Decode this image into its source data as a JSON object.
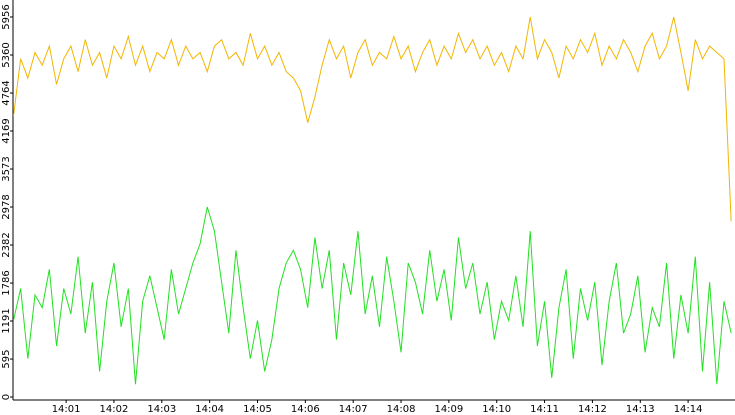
{
  "chart_data": {
    "type": "line",
    "x": [
      -0.1,
      0.05,
      0.2,
      0.35,
      0.5,
      0.65,
      0.8,
      0.95,
      1.1,
      1.25,
      1.4,
      1.55,
      1.7,
      1.85,
      2,
      2.15,
      2.3,
      2.45,
      2.6,
      2.75,
      2.9,
      3.05,
      3.2,
      3.35,
      3.5,
      3.65,
      3.8,
      3.95,
      4.1,
      4.25,
      4.4,
      4.55,
      4.7,
      4.85,
      5,
      5.15,
      5.3,
      5.45,
      5.6,
      5.75,
      5.9,
      6.05,
      6.2,
      6.35,
      6.5,
      6.65,
      6.8,
      6.95,
      7.1,
      7.25,
      7.4,
      7.55,
      7.7,
      7.85,
      8,
      8.15,
      8.3,
      8.45,
      8.6,
      8.75,
      8.9,
      9.05,
      9.2,
      9.35,
      9.5,
      9.65,
      9.8,
      9.95,
      10.1,
      10.25,
      10.4,
      10.55,
      10.7,
      10.85,
      11,
      11.15,
      11.3,
      11.45,
      11.6,
      11.75,
      11.9,
      12.05,
      12.2,
      12.35,
      12.5,
      12.65,
      12.8,
      12.95,
      13.1,
      13.25,
      13.4,
      13.55,
      13.7,
      13.85,
      14,
      14.15,
      14.3,
      14.45,
      14.6,
      14.75,
      14.9
    ],
    "series": [
      {
        "color": "#f2b600",
        "values": [
          4400,
          5300,
          5000,
          5400,
          5200,
          5500,
          4900,
          5300,
          5500,
          5100,
          5600,
          5200,
          5400,
          5000,
          5500,
          5300,
          5650,
          5200,
          5500,
          5100,
          5400,
          5300,
          5600,
          5200,
          5500,
          5300,
          5400,
          5100,
          5500,
          5600,
          5300,
          5400,
          5200,
          5700,
          5300,
          5500,
          5200,
          5400,
          5100,
          5000,
          4800,
          4300,
          4700,
          5200,
          5600,
          5300,
          5500,
          5000,
          5400,
          5600,
          5200,
          5400,
          5300,
          5650,
          5300,
          5500,
          5100,
          5400,
          5600,
          5200,
          5500,
          5300,
          5700,
          5400,
          5600,
          5300,
          5500,
          5200,
          5400,
          5100,
          5500,
          5300,
          5956,
          5300,
          5600,
          5400,
          5000,
          5500,
          5300,
          5600,
          5400,
          5700,
          5200,
          5500,
          5300,
          5600,
          5400,
          5100,
          5500,
          5700,
          5300,
          5500,
          5956,
          5400,
          4800,
          5600,
          5300,
          5500,
          5400,
          5300,
          2750
        ]
      },
      {
        "color": "#22e022",
        "values": [
          1200,
          1700,
          600,
          1600,
          1400,
          2000,
          800,
          1700,
          1300,
          2200,
          1000,
          1800,
          400,
          1500,
          2100,
          1100,
          1700,
          200,
          1500,
          1900,
          1400,
          900,
          2000,
          1300,
          1700,
          2100,
          2400,
          2978,
          2600,
          1800,
          1000,
          2300,
          1400,
          600,
          1200,
          400,
          900,
          1700,
          2100,
          2300,
          2000,
          1400,
          2500,
          1700,
          2300,
          900,
          2100,
          1600,
          2600,
          1300,
          1900,
          1100,
          2200,
          1500,
          700,
          2100,
          1800,
          1300,
          2300,
          1500,
          2000,
          1200,
          2500,
          1700,
          2100,
          1300,
          1800,
          900,
          1500,
          1200,
          1900,
          1100,
          2600,
          800,
          1500,
          300,
          1400,
          2000,
          600,
          1700,
          1200,
          1800,
          500,
          1500,
          2100,
          1000,
          1300,
          1900,
          700,
          1400,
          1100,
          2100,
          600,
          1600,
          1000,
          2200,
          400,
          1800,
          200,
          1500,
          1000
        ]
      }
    ],
    "xlim": [
      -0.11,
      14.98
    ],
    "xticks": [
      {
        "value": 1,
        "label": "14:01"
      },
      {
        "value": 2,
        "label": "14:02"
      },
      {
        "value": 3,
        "label": "14:03"
      },
      {
        "value": 4,
        "label": "14:04"
      },
      {
        "value": 5,
        "label": "14:05"
      },
      {
        "value": 6,
        "label": "14:06"
      },
      {
        "value": 7,
        "label": "14:07"
      },
      {
        "value": 8,
        "label": "14:08"
      },
      {
        "value": 9,
        "label": "14:09"
      },
      {
        "value": 10,
        "label": "14:10"
      },
      {
        "value": 11,
        "label": "14:11"
      },
      {
        "value": 12,
        "label": "14:12"
      },
      {
        "value": 13,
        "label": "14:13"
      },
      {
        "value": 14,
        "label": "14:14"
      }
    ],
    "ylim": [
      -47,
      6222
    ],
    "yticks": [
      0,
      595,
      1191,
      1786,
      2382,
      2978,
      3573,
      4169,
      4764,
      5360,
      5956
    ]
  }
}
